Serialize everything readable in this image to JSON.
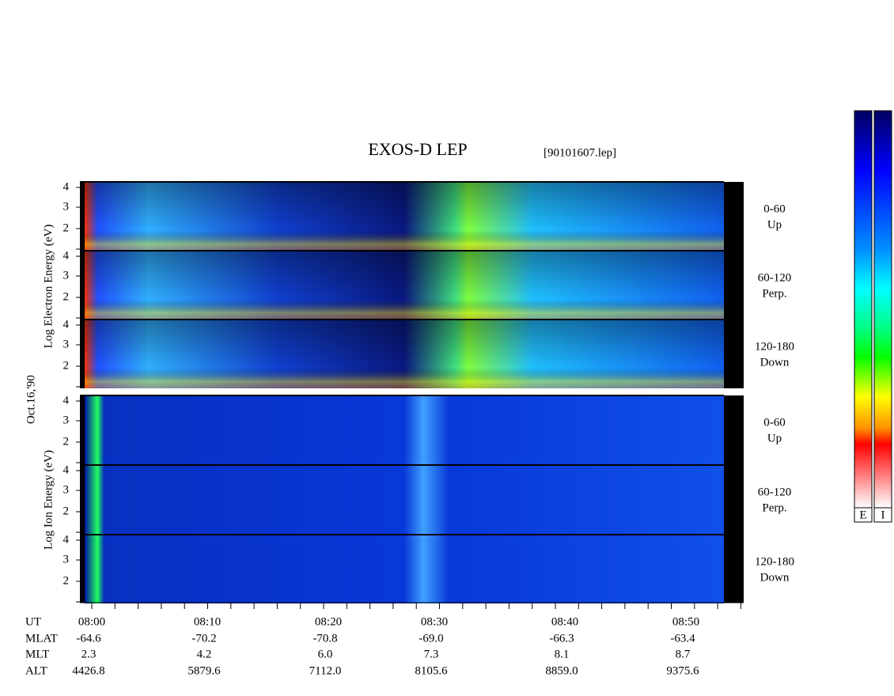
{
  "header": {
    "title": "EXOS-D LEP",
    "file": "[90101607.lep]"
  },
  "electron": {
    "label": "Log Electron Energy (eV)",
    "panels": [
      {
        "angle": "0-60",
        "direction": "Up"
      },
      {
        "angle": "60-120",
        "direction": "Perp."
      },
      {
        "angle": "120-180",
        "direction": "Down"
      }
    ]
  },
  "date": "Oct.16,'90",
  "ion": {
    "label": "Log Ion Energy (eV)",
    "panels": [
      {
        "angle": "0-60",
        "direction": "Up"
      },
      {
        "angle": "60-120",
        "direction": "Perp."
      },
      {
        "angle": "120-180",
        "direction": "Down"
      }
    ]
  },
  "energy_ticks": [
    "4",
    "3",
    "2"
  ],
  "orbit": {
    "row_labels": [
      "UT",
      "MLAT",
      "MLT",
      "ALT"
    ],
    "columns": [
      [
        "08:00",
        "-64.6",
        "2.3",
        "4426.8"
      ],
      [
        "08:10",
        "-70.2",
        "4.2",
        "5879.6"
      ],
      [
        "08:20",
        "-70.8",
        "6.0",
        "7112.0"
      ],
      [
        "08:30",
        "-69.0",
        "7.3",
        "8105.6"
      ],
      [
        "08:40",
        "-66.3",
        "8.1",
        "8859.0"
      ],
      [
        "08:50",
        "-63.4",
        "8.7",
        "9375.6"
      ]
    ]
  },
  "colorbar": {
    "labels": [
      "E",
      "I"
    ]
  }
}
